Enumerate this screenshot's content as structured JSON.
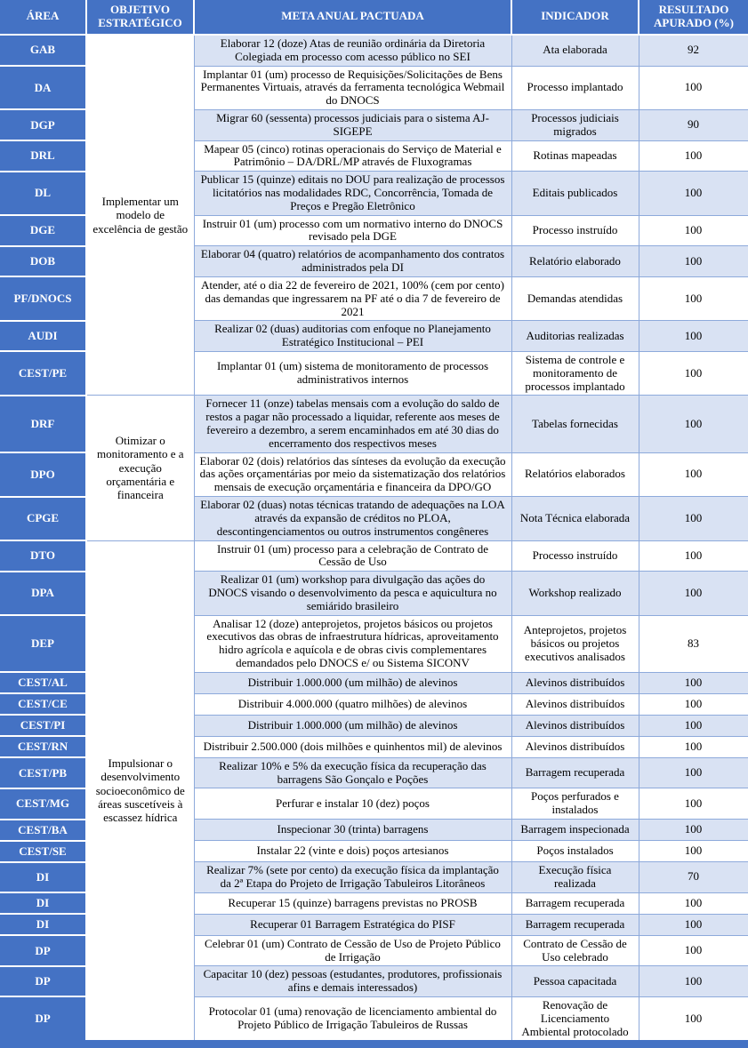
{
  "colors": {
    "header_bg": "#4472C4",
    "area_column_bg": "#4472C4",
    "band_row_bg": "#D9E2F3",
    "grid_border": "#8EAADB",
    "bottom_bar": "#4472C4"
  },
  "table": {
    "columns": [
      "ÁREA",
      "OBJETIVO ESTRATÉGICO",
      "META ANUAL PACTUADA",
      "INDICADOR",
      "RESULTADO APURADO (%)"
    ],
    "objetivo_groups": [
      {
        "label": "Implementar um modelo de excelência de gestão",
        "span": 10
      },
      {
        "label": "Otimizar o monitoramento e a execução orçamentária e financeira",
        "span": 3
      },
      {
        "label": "Impulsionar o desenvolvimento socioeconômico de áreas suscetíveis à escassez hídrica",
        "span": 17
      }
    ],
    "rows": [
      {
        "area": "GAB",
        "meta": "Elaborar 12 (doze) Atas de reunião ordinária da Diretoria Colegiada em processo com acesso público no SEI",
        "indicador": "Ata elaborada",
        "resultado": "92"
      },
      {
        "area": "DA",
        "meta": "Implantar 01 (um) processo de Requisições/Solicitações de Bens Permanentes Virtuais, através da ferramenta tecnológica Webmail do DNOCS",
        "indicador": "Processo implantado",
        "resultado": "100"
      },
      {
        "area": "DGP",
        "meta": "Migrar 60 (sessenta) processos judiciais para o sistema AJ-SIGEPE",
        "indicador": "Processos judiciais migrados",
        "resultado": "90"
      },
      {
        "area": "DRL",
        "meta": "Mapear 05 (cinco) rotinas operacionais do Serviço de Material e Patrimônio – DA/DRL/MP através de Fluxogramas",
        "indicador": "Rotinas mapeadas",
        "resultado": "100"
      },
      {
        "area": "DL",
        "meta": "Publicar 15 (quinze) editais no DOU para realização de processos licitatórios nas modalidades RDC, Concorrência, Tomada de Preços e Pregão Eletrônico",
        "indicador": "Editais publicados",
        "resultado": "100"
      },
      {
        "area": "DGE",
        "meta": "Instruir 01 (um) processo com um normativo interno do DNOCS revisado pela DGE",
        "indicador": "Processo instruído",
        "resultado": "100"
      },
      {
        "area": "DOB",
        "meta": "Elaborar 04 (quatro) relatórios de acompanhamento dos contratos administrados pela DI",
        "indicador": "Relatório elaborado",
        "resultado": "100"
      },
      {
        "area": "PF/DNOCS",
        "meta": "Atender, até o dia 22 de fevereiro de 2021, 100% (cem por cento) das demandas que ingressarem na PF até o dia 7 de fevereiro de 2021",
        "indicador": "Demandas atendidas",
        "resultado": "100"
      },
      {
        "area": "AUDI",
        "meta": "Realizar 02 (duas) auditorias com enfoque no Planejamento Estratégico Institucional – PEI",
        "indicador": "Auditorias realizadas",
        "resultado": "100"
      },
      {
        "area": "CEST/PE",
        "meta": "Implantar 01 (um) sistema de monitoramento de processos administrativos internos",
        "indicador": "Sistema de controle e monitoramento de processos implantado",
        "resultado": "100"
      },
      {
        "area": "DRF",
        "meta": "Fornecer 11 (onze) tabelas mensais com a evolução do saldo de restos a pagar não processado a liquidar, referente aos meses de fevereiro a dezembro, a serem encaminhados em até 30 dias do encerramento dos respectivos meses",
        "indicador": "Tabelas fornecidas",
        "resultado": "100"
      },
      {
        "area": "DPO",
        "meta": "Elaborar 02 (dois) relatórios das sínteses da evolução da execução das ações orçamentárias por meio da sistematização dos relatórios mensais de execução orçamentária e financeira da DPO/GO",
        "indicador": "Relatórios elaborados",
        "resultado": "100"
      },
      {
        "area": "CPGE",
        "meta": "Elaborar 02 (duas) notas técnicas tratando de adequações na LOA através da expansão de créditos no PLOA, descontingenciamentos ou outros instrumentos congêneres",
        "indicador": "Nota Técnica elaborada",
        "resultado": "100"
      },
      {
        "area": "DTO",
        "meta": "Instruir 01 (um) processo para a celebração de Contrato de Cessão de Uso",
        "indicador": "Processo instruído",
        "resultado": "100"
      },
      {
        "area": "DPA",
        "meta": "Realizar 01 (um) workshop para divulgação das ações do DNOCS visando o desenvolvimento da pesca e aquicultura no semiárido brasileiro",
        "indicador": "Workshop realizado",
        "resultado": "100"
      },
      {
        "area": "DEP",
        "meta": "Analisar 12 (doze) anteprojetos, projetos básicos ou projetos executivos das obras de infraestrutura hídricas, aproveitamento hidro agrícola e aquícola e de obras civis complementares demandados pelo DNOCS e/ ou Sistema SICONV",
        "indicador": "Anteprojetos, projetos básicos ou projetos executivos analisados",
        "resultado": "83"
      },
      {
        "area": "CEST/AL",
        "meta": "Distribuir 1.000.000 (um milhão) de alevinos",
        "indicador": "Alevinos distribuídos",
        "resultado": "100"
      },
      {
        "area": "CEST/CE",
        "meta": "Distribuir 4.000.000 (quatro milhões) de alevinos",
        "indicador": "Alevinos distribuídos",
        "resultado": "100"
      },
      {
        "area": "CEST/PI",
        "meta": "Distribuir 1.000.000 (um milhão) de alevinos",
        "indicador": "Alevinos distribuídos",
        "resultado": "100"
      },
      {
        "area": "CEST/RN",
        "meta": "Distribuir 2.500.000 (dois milhões e quinhentos mil) de alevinos",
        "indicador": "Alevinos distribuídos",
        "resultado": "100"
      },
      {
        "area": "CEST/PB",
        "meta": "Realizar 10% e 5% da execução física da recuperação das barragens São Gonçalo e Poções",
        "indicador": "Barragem recuperada",
        "resultado": "100"
      },
      {
        "area": "CEST/MG",
        "meta": "Perfurar e instalar 10 (dez) poços",
        "indicador": "Poços perfurados e instalados",
        "resultado": "100"
      },
      {
        "area": "CEST/BA",
        "meta": "Inspecionar 30 (trinta) barragens",
        "indicador": "Barragem inspecionada",
        "resultado": "100"
      },
      {
        "area": "CEST/SE",
        "meta": "Instalar 22 (vinte e dois) poços artesianos",
        "indicador": "Poços instalados",
        "resultado": "100"
      },
      {
        "area": "DI",
        "meta": "Realizar 7% (sete por cento) da execução física da implantação da 2ª Etapa do Projeto de Irrigação Tabuleiros Litorâneos",
        "indicador": "Execução física realizada",
        "resultado": "70"
      },
      {
        "area": "DI",
        "meta": "Recuperar 15 (quinze) barragens previstas no PROSB",
        "indicador": "Barragem recuperada",
        "resultado": "100"
      },
      {
        "area": "DI",
        "meta": "Recuperar 01 Barragem Estratégica do PISF",
        "indicador": "Barragem recuperada",
        "resultado": "100"
      },
      {
        "area": "DP",
        "meta": "Celebrar 01 (um) Contrato de Cessão de Uso de Projeto Público de Irrigação",
        "indicador": "Contrato de Cessão de Uso celebrado",
        "resultado": "100"
      },
      {
        "area": "DP",
        "meta": "Capacitar 10 (dez) pessoas (estudantes, produtores, profissionais afins e demais interessados)",
        "indicador": "Pessoa capacitada",
        "resultado": "100"
      },
      {
        "area": "DP",
        "meta": "Protocolar 01 (uma) renovação de licenciamento ambiental do Projeto Público de Irrigação Tabuleiros de Russas",
        "indicador": "Renovação de Licenciamento Ambiental protocolado",
        "resultado": "100"
      }
    ]
  }
}
